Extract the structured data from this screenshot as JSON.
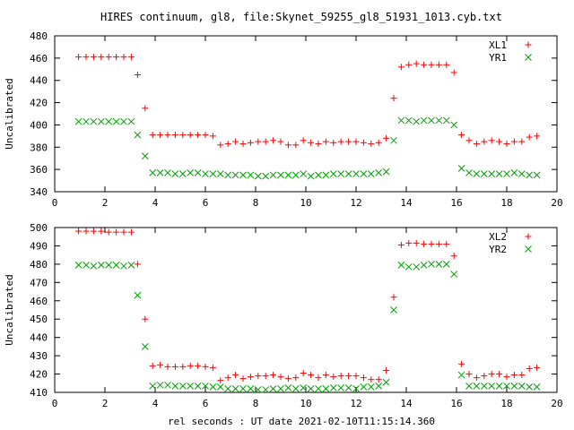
{
  "title": "HIRES continuum, gl8, file:Skynet_59255_gl8_51931_1013.cyb.txt",
  "xlabel": "rel seconds : UT date 2021-02-10T11:15:14.360",
  "colors": {
    "red_series": "#ff0000",
    "green_series": "#00a000",
    "frame": "#000000"
  },
  "chart_data": [
    {
      "type": "scatter",
      "ylabel": "Uncalibrated",
      "xlim": [
        0,
        20
      ],
      "ylim": [
        340,
        480
      ],
      "xticks": [
        0,
        2,
        4,
        6,
        8,
        10,
        12,
        14,
        16,
        18,
        20
      ],
      "yticks": [
        340,
        360,
        380,
        400,
        420,
        440,
        460,
        480
      ],
      "legend_position": "top-right",
      "series": [
        {
          "name": "XL1",
          "marker": "plus",
          "color": "#ff0000",
          "x": [
            0.95,
            1.25,
            1.55,
            1.85,
            2.15,
            2.45,
            2.75,
            3.05,
            3.3,
            3.6,
            3.9,
            4.2,
            4.5,
            4.8,
            5.1,
            5.4,
            5.7,
            6.0,
            6.3,
            6.6,
            6.9,
            7.2,
            7.5,
            7.8,
            8.1,
            8.4,
            8.7,
            9.0,
            9.3,
            9.6,
            9.9,
            10.2,
            10.5,
            10.8,
            11.1,
            11.4,
            11.7,
            12.0,
            12.3,
            12.6,
            12.9,
            13.2,
            13.5,
            13.8,
            14.1,
            14.4,
            14.7,
            15.0,
            15.3,
            15.6,
            15.9,
            16.2,
            16.5,
            16.8,
            17.1,
            17.4,
            17.7,
            18.0,
            18.3,
            18.6,
            18.9,
            19.2
          ],
          "y": [
            461,
            461,
            461,
            461,
            461,
            461,
            461,
            461,
            445,
            415,
            391,
            391,
            391,
            391,
            391,
            391,
            391,
            391,
            390,
            382,
            383,
            385,
            383,
            384,
            385,
            385,
            386,
            385,
            382,
            382,
            386,
            384,
            383,
            385,
            384,
            385,
            385,
            385,
            384,
            383,
            384,
            388,
            424,
            452,
            454,
            455,
            454,
            454,
            454,
            454,
            447,
            391,
            386,
            383,
            385,
            386,
            385,
            383,
            385,
            385,
            389,
            390
          ]
        },
        {
          "name": "YR1",
          "marker": "cross",
          "color": "#00a000",
          "x": [
            0.95,
            1.25,
            1.55,
            1.85,
            2.15,
            2.45,
            2.75,
            3.05,
            3.3,
            3.6,
            3.9,
            4.2,
            4.5,
            4.8,
            5.1,
            5.4,
            5.7,
            6.0,
            6.3,
            6.6,
            6.9,
            7.2,
            7.5,
            7.8,
            8.1,
            8.4,
            8.7,
            9.0,
            9.3,
            9.6,
            9.9,
            10.2,
            10.5,
            10.8,
            11.1,
            11.4,
            11.7,
            12.0,
            12.3,
            12.6,
            12.9,
            13.2,
            13.5,
            13.8,
            14.1,
            14.4,
            14.7,
            15.0,
            15.3,
            15.6,
            15.9,
            16.2,
            16.5,
            16.8,
            17.1,
            17.4,
            17.7,
            18.0,
            18.3,
            18.6,
            18.9,
            19.2
          ],
          "y": [
            403,
            403,
            403,
            403,
            403,
            403,
            403,
            403,
            391,
            372,
            357,
            357,
            357,
            356,
            356,
            357,
            357,
            356,
            356,
            356,
            355,
            355,
            355,
            355,
            354,
            354,
            355,
            355,
            355,
            355,
            356,
            354,
            355,
            355,
            356,
            356,
            356,
            356,
            356,
            356,
            357,
            358,
            386,
            404,
            404,
            403,
            404,
            404,
            404,
            404,
            400,
            361,
            357,
            356,
            356,
            356,
            356,
            356,
            357,
            356,
            355,
            355
          ]
        }
      ]
    },
    {
      "type": "scatter",
      "ylabel": "Uncalibrated",
      "xlim": [
        0,
        20
      ],
      "ylim": [
        410,
        500
      ],
      "xticks": [
        0,
        2,
        4,
        6,
        8,
        10,
        12,
        14,
        16,
        18,
        20
      ],
      "yticks": [
        410,
        420,
        430,
        440,
        450,
        460,
        470,
        480,
        490,
        500
      ],
      "legend_position": "top-right",
      "series": [
        {
          "name": "XL2",
          "marker": "plus",
          "color": "#ff0000",
          "x": [
            0.95,
            1.25,
            1.55,
            1.85,
            2.15,
            2.45,
            2.75,
            3.05,
            3.3,
            3.6,
            3.9,
            4.2,
            4.5,
            4.8,
            5.1,
            5.4,
            5.7,
            6.0,
            6.3,
            6.6,
            6.9,
            7.2,
            7.5,
            7.8,
            8.1,
            8.4,
            8.7,
            9.0,
            9.3,
            9.6,
            9.9,
            10.2,
            10.5,
            10.8,
            11.1,
            11.4,
            11.7,
            12.0,
            12.3,
            12.6,
            12.9,
            13.2,
            13.5,
            13.8,
            14.1,
            14.4,
            14.7,
            15.0,
            15.3,
            15.6,
            15.9,
            16.2,
            16.5,
            16.8,
            17.1,
            17.4,
            17.7,
            18.0,
            18.3,
            18.6,
            18.9,
            19.2
          ],
          "y": [
            498,
            498,
            498,
            498,
            497.5,
            497.5,
            497.5,
            497.5,
            480,
            450,
            424.5,
            425,
            424,
            424,
            424,
            424.5,
            424.5,
            424,
            423.5,
            416.5,
            418,
            419.5,
            417.5,
            418.5,
            419,
            419,
            419.5,
            418.5,
            417.5,
            418,
            420.5,
            419.5,
            418,
            419.5,
            418.5,
            419,
            419,
            419,
            418,
            417,
            417,
            422,
            462,
            490.5,
            491.5,
            491.5,
            491,
            491,
            491,
            491,
            484.5,
            425.5,
            420,
            418,
            419,
            420,
            420,
            418.5,
            419.5,
            419.5,
            423,
            423.5
          ]
        },
        {
          "name": "YR2",
          "marker": "cross",
          "color": "#00a000",
          "x": [
            0.95,
            1.25,
            1.55,
            1.85,
            2.15,
            2.45,
            2.75,
            3.05,
            3.3,
            3.6,
            3.9,
            4.2,
            4.5,
            4.8,
            5.1,
            5.4,
            5.7,
            6.0,
            6.3,
            6.6,
            6.9,
            7.2,
            7.5,
            7.8,
            8.1,
            8.4,
            8.7,
            9.0,
            9.3,
            9.6,
            9.9,
            10.2,
            10.5,
            10.8,
            11.1,
            11.4,
            11.7,
            12.0,
            12.3,
            12.6,
            12.9,
            13.2,
            13.5,
            13.8,
            14.1,
            14.4,
            14.7,
            15.0,
            15.3,
            15.6,
            15.9,
            16.2,
            16.5,
            16.8,
            17.1,
            17.4,
            17.7,
            18.0,
            18.3,
            18.6,
            18.9,
            19.2
          ],
          "y": [
            479.5,
            479.5,
            479,
            479.5,
            479.5,
            479.5,
            479,
            479.5,
            463,
            435,
            413.5,
            414,
            414,
            413.5,
            413.5,
            413.5,
            413.5,
            413.5,
            413,
            413,
            412,
            412,
            412,
            412,
            411.5,
            411.5,
            412,
            412,
            412.5,
            412,
            412.5,
            412,
            412,
            412,
            412.5,
            412.5,
            412.5,
            412,
            413,
            413,
            413.5,
            415.5,
            455,
            479.5,
            478.5,
            478.5,
            479.5,
            480,
            480,
            480,
            474.5,
            419.5,
            413.5,
            413.5,
            413.5,
            413.5,
            413.5,
            413.5,
            413.5,
            413.5,
            413,
            413
          ]
        }
      ]
    }
  ]
}
